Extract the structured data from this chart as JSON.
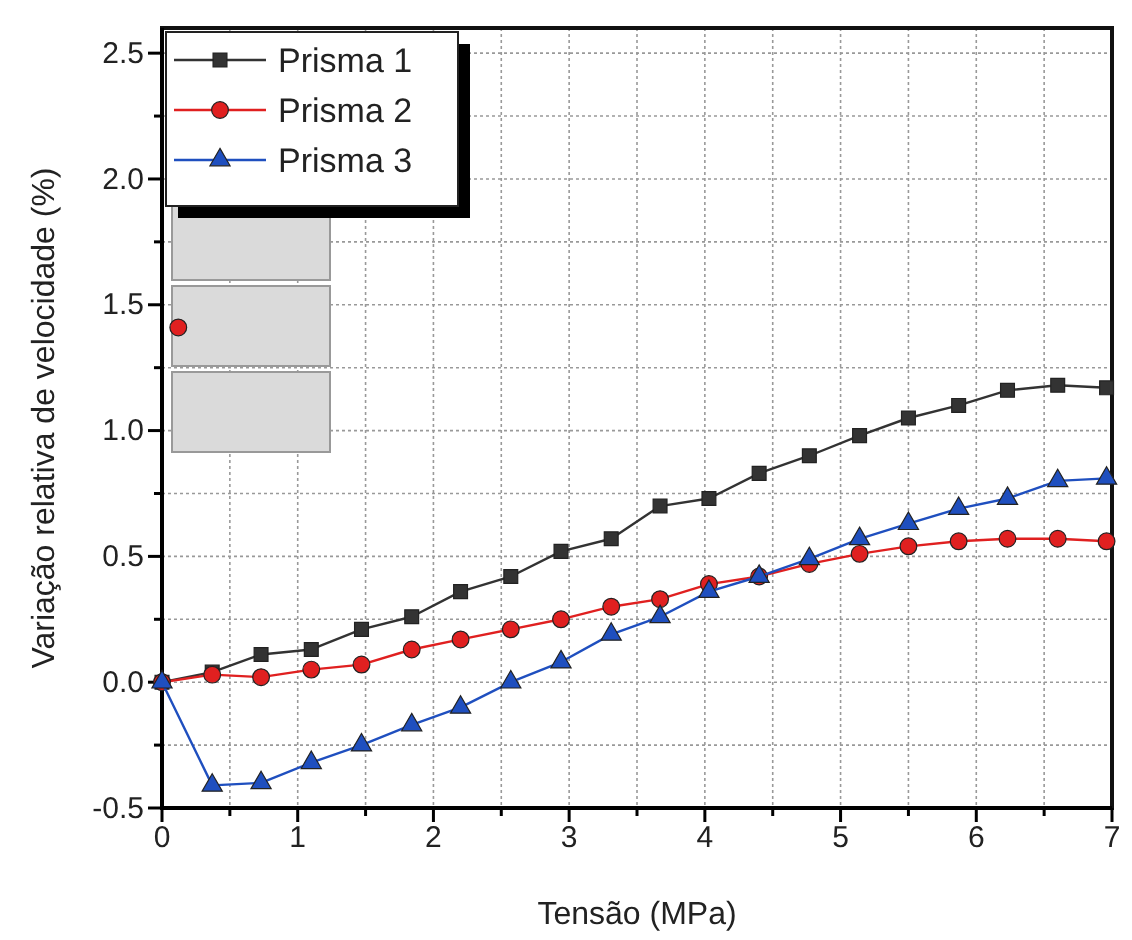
{
  "chart_data": {
    "type": "line",
    "xlabel": "Tensão (MPa)",
    "ylabel": "Variação relativa de velocidade (%)",
    "x": [
      0,
      0.37,
      0.73,
      1.1,
      1.47,
      1.84,
      2.2,
      2.57,
      2.94,
      3.31,
      3.67,
      4.03,
      4.4,
      4.77,
      5.14,
      5.5,
      5.87,
      6.23,
      6.6,
      6.96
    ],
    "series": [
      {
        "name": "Prisma 1",
        "color": "#333333",
        "marker": "square",
        "values": [
          0,
          0.04,
          0.11,
          0.13,
          0.21,
          0.26,
          0.36,
          0.42,
          0.52,
          0.57,
          0.7,
          0.73,
          0.83,
          0.9,
          0.98,
          1.05,
          1.1,
          1.16,
          1.18,
          1.17
        ]
      },
      {
        "name": "Prisma 2",
        "color": "#e02020",
        "marker": "circle",
        "values": [
          0,
          0.03,
          0.02,
          0.05,
          0.07,
          0.13,
          0.17,
          0.21,
          0.25,
          0.3,
          0.33,
          0.39,
          0.42,
          0.47,
          0.51,
          0.54,
          0.56,
          0.57,
          0.57,
          0.56
        ]
      },
      {
        "type": "scatter",
        "color": "#e02020",
        "marker": "circle",
        "x": [
          0.12
        ],
        "values": [
          1.41
        ]
      },
      {
        "name": "Prisma 3",
        "color": "#1f4fbf",
        "marker": "triangle",
        "values": [
          0,
          -0.41,
          -0.4,
          -0.32,
          -0.25,
          -0.17,
          -0.1,
          0,
          0.08,
          0.19,
          0.26,
          0.36,
          0.42,
          0.49,
          0.57,
          0.63,
          0.69,
          0.73,
          0.8,
          0.81
        ]
      }
    ],
    "xlim": [
      0,
      7
    ],
    "xticks": [
      0,
      {
        "value": 0.5,
        "label": null
      },
      1,
      {
        "value": 1.5,
        "label": null
      },
      2,
      {
        "value": 2.5,
        "label": null
      },
      3,
      {
        "value": 3.5,
        "label": null
      },
      4,
      {
        "value": 4.5,
        "label": null
      },
      5,
      {
        "value": 5.5,
        "label": null
      },
      6,
      {
        "value": 6.5,
        "label": null
      },
      7
    ],
    "ylim": [
      -0.5,
      2.6
    ],
    "yticks": [
      {
        "value": -0.5,
        "label": "-0.5"
      },
      {
        "value": -0.25,
        "label": null
      },
      {
        "value": 0,
        "label": "0.0"
      },
      {
        "value": 0.25,
        "label": null
      },
      {
        "value": 0.5,
        "label": "0.5"
      },
      {
        "value": 0.75,
        "label": null
      },
      {
        "value": 1,
        "label": "1.0"
      },
      {
        "value": 1.25,
        "label": null
      },
      {
        "value": 1.5,
        "label": "1.5"
      },
      {
        "value": 1.75,
        "label": null
      },
      {
        "value": 2,
        "label": "2.0"
      },
      {
        "value": 2.25,
        "label": null
      },
      {
        "value": 2.5,
        "label": "2.5"
      }
    ],
    "grid": true,
    "legend": "top left"
  }
}
